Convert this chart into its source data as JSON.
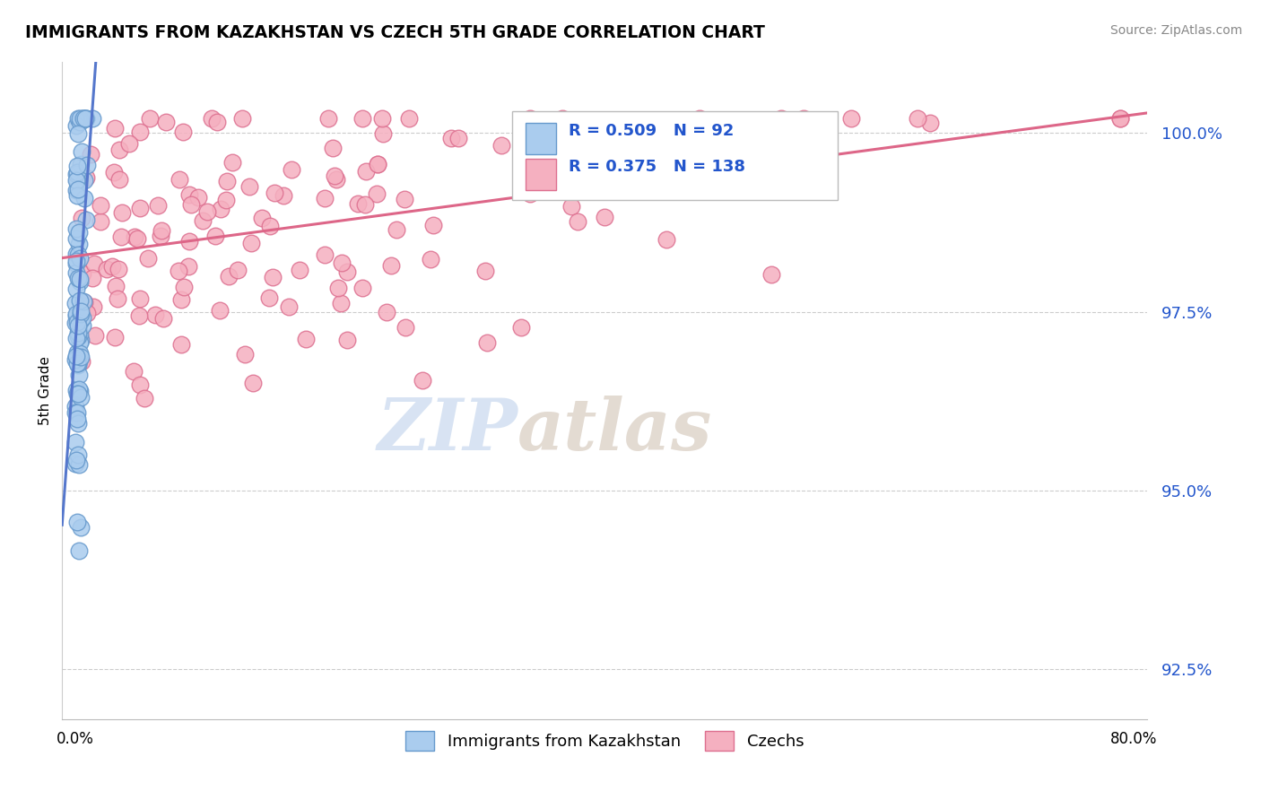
{
  "title": "IMMIGRANTS FROM KAZAKHSTAN VS CZECH 5TH GRADE CORRELATION CHART",
  "source_text": "Source: ZipAtlas.com",
  "ylabel": "5th Grade",
  "xlim": [
    -1.0,
    81.0
  ],
  "ylim": [
    91.8,
    101.0
  ],
  "yticks": [
    92.5,
    95.0,
    97.5,
    100.0
  ],
  "ytick_labels": [
    "92.5%",
    "95.0%",
    "97.5%",
    "100.0%"
  ],
  "xtick_positions": [
    0.0,
    80.0
  ],
  "xtick_labels": [
    "0.0%",
    "80.0%"
  ],
  "blue_color": "#aaccee",
  "blue_edge_color": "#6699cc",
  "pink_color": "#f5b0c0",
  "pink_edge_color": "#dd7090",
  "blue_trend_color": "#5577cc",
  "pink_trend_color": "#dd6688",
  "blue_R": 0.509,
  "blue_N": 92,
  "pink_R": 0.375,
  "pink_N": 138,
  "legend_label_blue": "Immigrants from Kazakhstan",
  "legend_label_pink": "Czechs",
  "legend_R_color": "#2255cc",
  "watermark_zip_color": "#c8d8ee",
  "watermark_atlas_color": "#d8ccc0",
  "seed": 12345
}
